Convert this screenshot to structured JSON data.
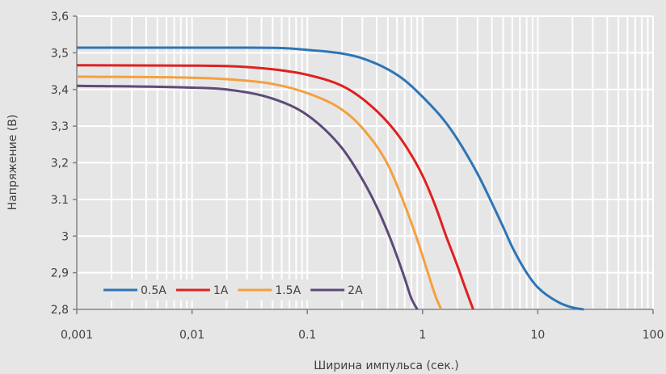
{
  "chart_data": {
    "type": "line",
    "xscale": "log",
    "xlim": [
      0.001,
      100
    ],
    "ylim": [
      2.8,
      3.6
    ],
    "grid": true,
    "legend_position": "bottom-left",
    "xlabel": "Ширина импульса (сек.)",
    "ylabel": "Напряжение (В)",
    "x_tick_labels": [
      "0,001",
      "0,01",
      "0.1",
      "1",
      "10",
      "100"
    ],
    "y_tick_labels": [
      "2,8",
      "2,9",
      "3",
      "3.1",
      "3,2",
      "3,3",
      "3,4",
      "3,5",
      "3,6"
    ],
    "series": [
      {
        "name": "0.5A",
        "color": "#2e75b6",
        "x": [
          0.001,
          0.01,
          0.03,
          0.06,
          0.1,
          0.2,
          0.3,
          0.5,
          0.7,
          1,
          1.5,
          2,
          3,
          4,
          5,
          6,
          8,
          10,
          15,
          20,
          25
        ],
        "y": [
          3.514,
          3.514,
          3.514,
          3.513,
          3.508,
          3.498,
          3.485,
          3.455,
          3.425,
          3.38,
          3.32,
          3.265,
          3.17,
          3.09,
          3.025,
          2.97,
          2.9,
          2.86,
          2.82,
          2.805,
          2.8
        ]
      },
      {
        "name": "1A",
        "color": "#e02020",
        "x": [
          0.001,
          0.01,
          0.02,
          0.05,
          0.1,
          0.2,
          0.3,
          0.5,
          0.7,
          1,
          1.3,
          1.6,
          2,
          2.4,
          2.75
        ],
        "y": [
          3.466,
          3.465,
          3.464,
          3.455,
          3.44,
          3.41,
          3.375,
          3.31,
          3.25,
          3.165,
          3.08,
          3.0,
          2.92,
          2.85,
          2.8
        ]
      },
      {
        "name": "1.5A",
        "color": "#f4a040",
        "x": [
          0.001,
          0.01,
          0.02,
          0.05,
          0.1,
          0.2,
          0.3,
          0.5,
          0.7,
          0.9,
          1.1,
          1.3,
          1.45
        ],
        "y": [
          3.435,
          3.432,
          3.428,
          3.415,
          3.39,
          3.345,
          3.295,
          3.195,
          3.085,
          2.99,
          2.905,
          2.835,
          2.8
        ]
      },
      {
        "name": "2A",
        "color": "#5e4a78",
        "x": [
          0.001,
          0.01,
          0.02,
          0.05,
          0.1,
          0.2,
          0.3,
          0.4,
          0.5,
          0.6,
          0.7,
          0.8,
          0.9
        ],
        "y": [
          3.41,
          3.405,
          3.4,
          3.375,
          3.33,
          3.24,
          3.155,
          3.08,
          3.01,
          2.945,
          2.885,
          2.83,
          2.8
        ]
      }
    ]
  }
}
